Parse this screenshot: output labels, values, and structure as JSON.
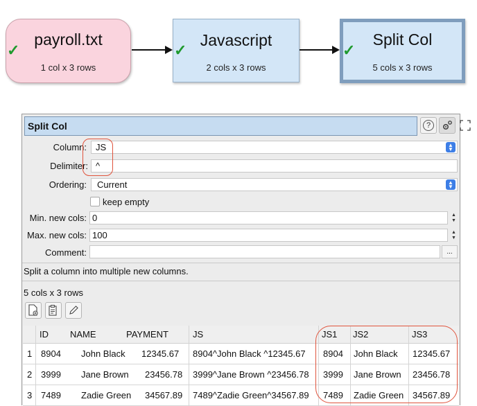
{
  "flow": {
    "nodes": [
      {
        "title": "payroll.txt",
        "sub": "1 col x 3 rows"
      },
      {
        "title": "Javascript",
        "sub": "2 cols x 3 rows"
      },
      {
        "title": "Split Col",
        "sub": "5 cols x 3 rows"
      }
    ],
    "check_glyph": "✓"
  },
  "panel": {
    "title": "Split Col",
    "help_glyph": "?",
    "fields": {
      "column_label": "Column:",
      "column_value": "JS",
      "delimiter_label": "Delimiter:",
      "delimiter_value": "^",
      "ordering_label": "Ordering:",
      "ordering_value": "Current",
      "keep_empty_label": "keep empty",
      "min_label": "Min. new cols:",
      "min_value": "0",
      "max_label": "Max. new cols:",
      "max_value": "100",
      "comment_label": "Comment:",
      "comment_value": "",
      "comment_btn": "..."
    },
    "description": "Split a column into multiple new columns.",
    "dims": "5 cols x 3 rows"
  },
  "table": {
    "columns": [
      "ID",
      "NAME",
      "PAYMENT",
      "JS",
      "JS1",
      "JS2",
      "JS3"
    ],
    "rows": [
      {
        "n": "1",
        "cells": [
          "8904",
          "John Black",
          "12345.67",
          "8904^John Black ^12345.67",
          "8904",
          "John Black",
          "12345.67"
        ]
      },
      {
        "n": "2",
        "cells": [
          "3999",
          "Jane Brown",
          "23456.78",
          "3999^Jane Brown ^23456.78",
          "3999",
          "Jane Brown",
          "23456.78"
        ]
      },
      {
        "n": "3",
        "cells": [
          "7489",
          "Zadie Green",
          "34567.89",
          "7489^Zadie Green^34567.89",
          "7489",
          "Zadie Green",
          "34567.89"
        ]
      }
    ]
  },
  "colors": {
    "annotation": "#e0533c",
    "check": "#1f9a2e",
    "select": "#3d7ee6"
  }
}
